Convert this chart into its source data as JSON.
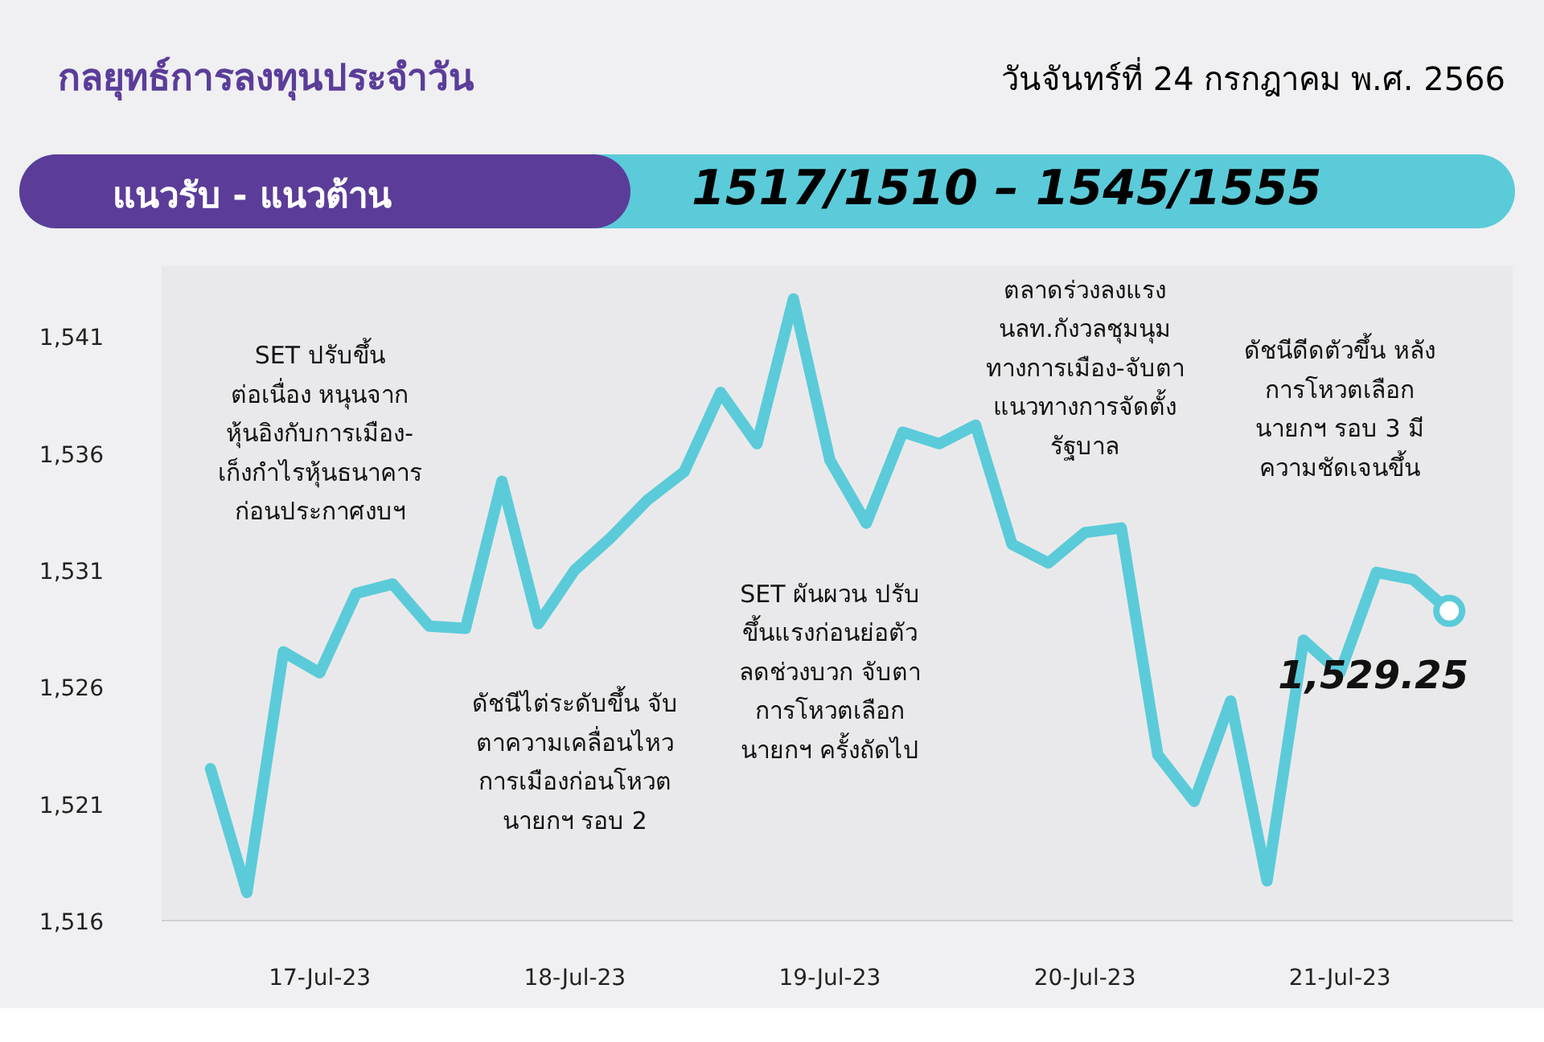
{
  "chart_data": {
    "type": "line",
    "title": "กลยุทธ์การลงทุนประจำวัน",
    "subtitle": "วันจันทร์ที่ 24 กรกฎาคม พ.ศ. 2566",
    "annotations": [
      "แนวรับ - แนวต้าน",
      "1517/1510 – 1545/1555",
      "SET ปรับขึ้น\nต่อเนื่อง หนุนจาก\nหุ้นอิงกับการเมือง-\nเก็งกำไรหุ้นธนาคาร\nก่อนประกาศงบฯ",
      "ดัชนีไต่ระดับขึ้น จับ\nตาความเคลื่อนไหว\nการเมืองก่อนโหวต\nนายกฯ รอบ 2",
      "SET ผันผวน ปรับ\nขึ้นแรงก่อนย่อตัว\nลดช่วงบวก จับตา\nการโหวตเลือก\nนายกฯ ครั้งถัดไป",
      "ตลาดร่วงลงแรง\nนลท.กังวลชุมนุม\nทางการเมือง-จับตา\nแนวทางการจัดตั้ง\nรัฐบาล",
      "ดัชนีดีดตัวขึ้น หลัง\nการโหวตเลือก\nนายกฯ รอบ 3 มี\nความชัดเจนขึ้น",
      {
        "text": "1,529.25",
        "y": 1529.25
      }
    ],
    "categories": [
      null,
      null,
      null,
      "17-Jul-23",
      null,
      null,
      null,
      null,
      null,
      null,
      "18-Jul-23",
      null,
      null,
      null,
      null,
      null,
      null,
      "19-Jul-23",
      null,
      null,
      null,
      null,
      null,
      null,
      "20-Jul-23",
      null,
      null,
      null,
      null,
      null,
      null,
      "21-Jul-23",
      null,
      null,
      null
    ],
    "series": [
      {
        "color": "#5bcbd9",
        "values": [
          1522.5,
          1517.2,
          1527.5,
          1526.6,
          1530.0,
          1530.4,
          1528.6,
          1528.5,
          1534.8,
          1528.7,
          1531.0,
          1532.4,
          1534.0,
          1535.2,
          1538.6,
          1536.4,
          1542.6,
          1535.7,
          1533.0,
          1536.9,
          1536.4,
          1537.2,
          1532.1,
          1531.3,
          1532.6,
          1532.8,
          1523.1,
          1521.1,
          1525.4,
          1517.7,
          1528.0,
          1526.6,
          1530.9,
          1530.6,
          1529.25
        ]
      }
    ],
    "ylim": [
      1516,
      1544
    ],
    "yticks": [
      {
        "value": 1516,
        "label": "1,516"
      },
      {
        "value": 1521,
        "label": "1,521"
      },
      {
        "value": 1526,
        "label": "1,526"
      },
      {
        "value": 1531,
        "label": "1,531"
      },
      {
        "value": 1536,
        "label": "1,536"
      },
      {
        "value": 1541,
        "label": "1,541"
      }
    ],
    "grid": false,
    "line_style": "solid"
  }
}
